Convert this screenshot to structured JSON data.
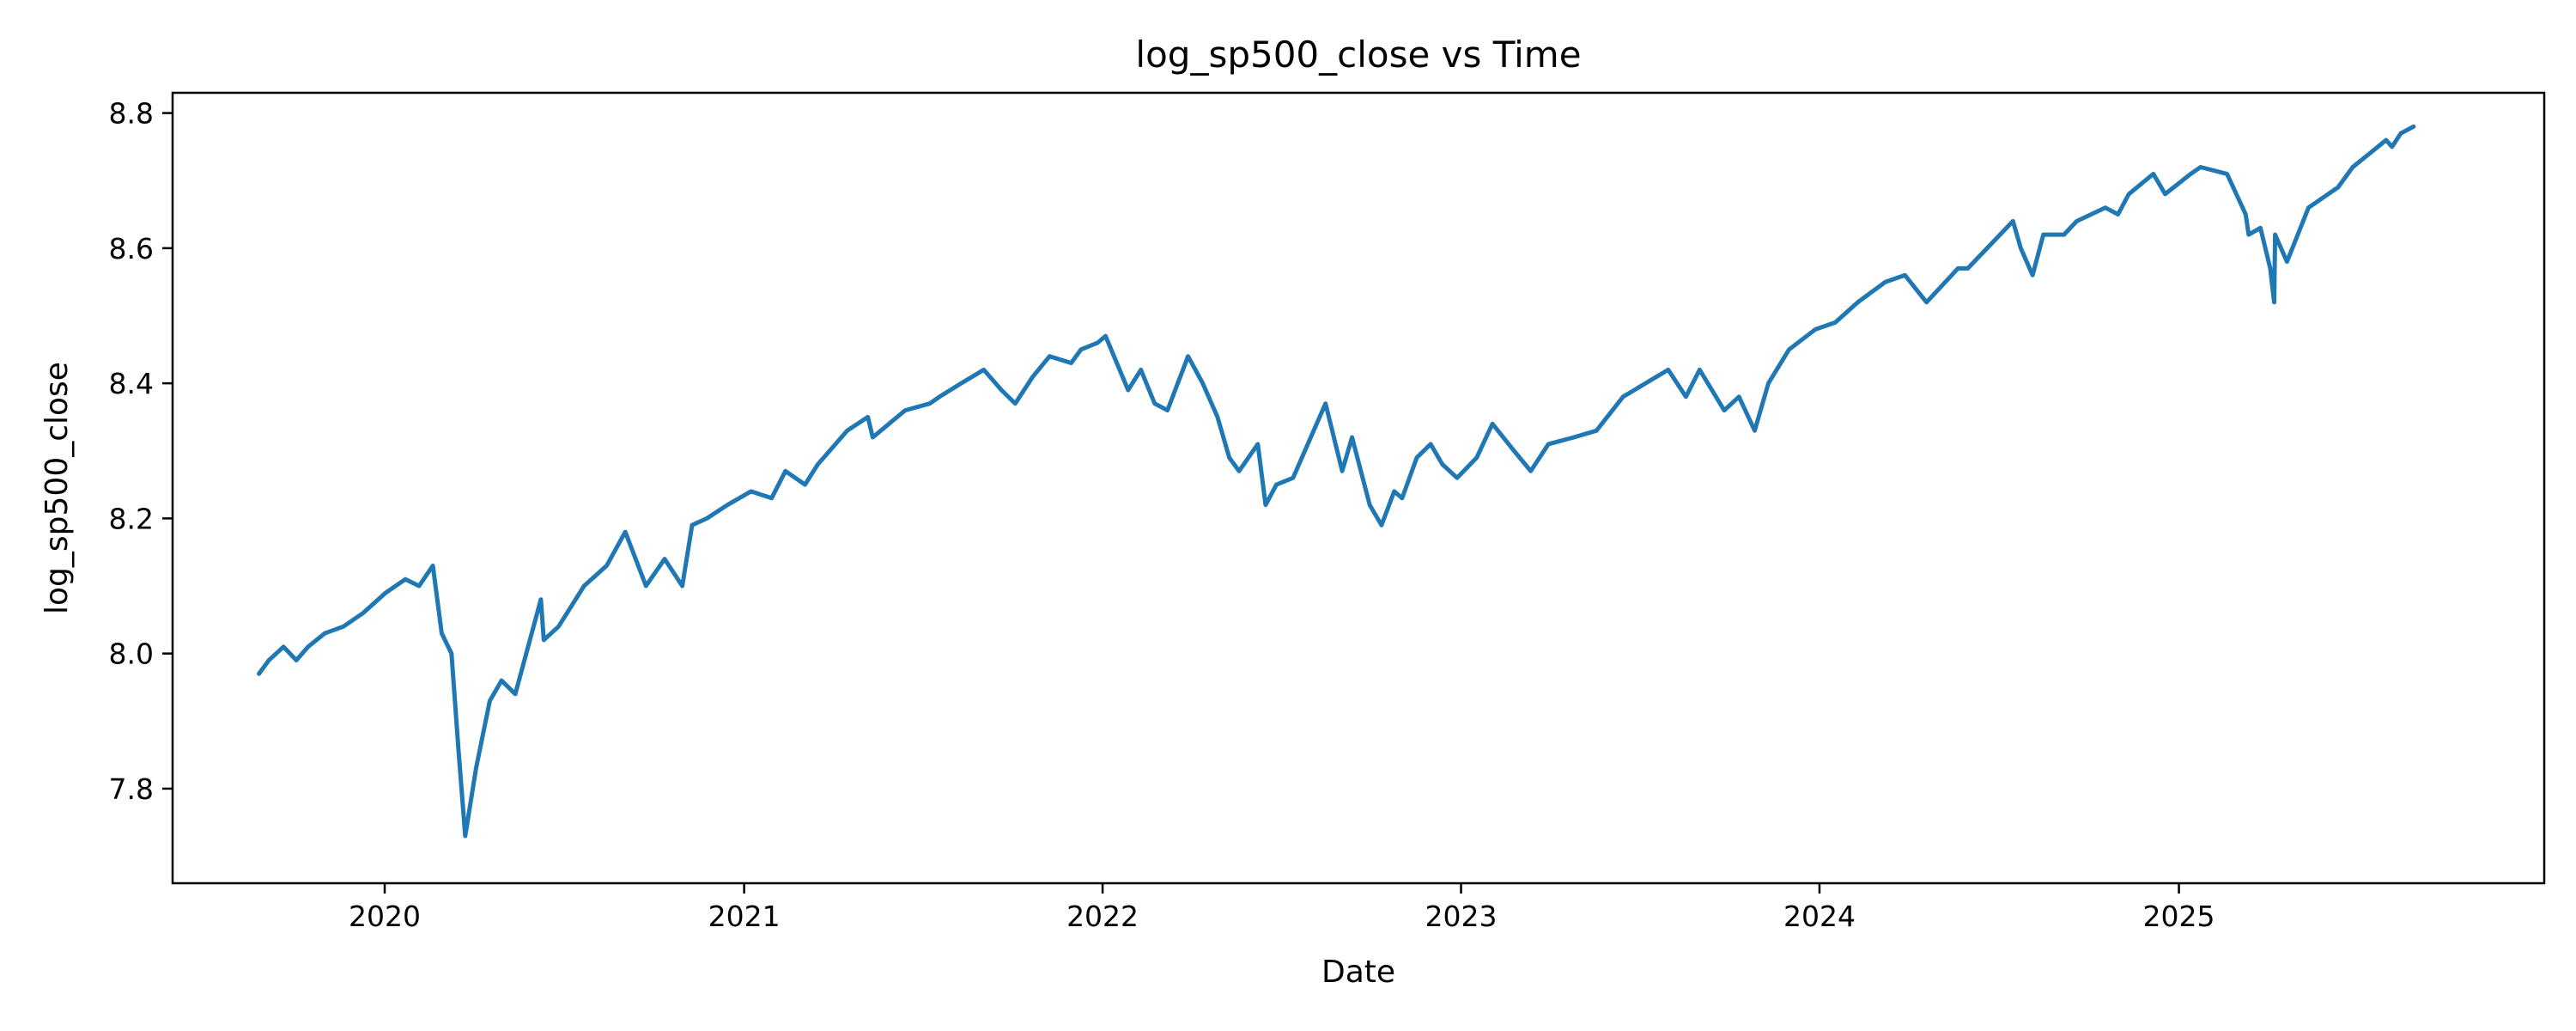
{
  "chart_data": {
    "type": "line",
    "title": "log_sp500_close vs Time",
    "xlabel": "Date",
    "ylabel": "log_sp500_close",
    "xlim": [
      "2019-05-30",
      "2026-01-08"
    ],
    "ylim": [
      7.66,
      8.83
    ],
    "xticks": [
      "2020",
      "2021",
      "2022",
      "2023",
      "2024",
      "2025"
    ],
    "yticks": [
      "7.8",
      "8.0",
      "8.2",
      "8.4",
      "8.6",
      "8.8"
    ],
    "grid": false,
    "legend": "none",
    "line_color": "#1f77b4",
    "series": [
      {
        "x": [
          "2019-08-26",
          "2019-09-05",
          "2019-09-20",
          "2019-10-03",
          "2019-10-15",
          "2019-11-01",
          "2019-11-20",
          "2019-12-10",
          "2020-01-02",
          "2020-01-22",
          "2020-02-05",
          "2020-02-19",
          "2020-02-28",
          "2020-03-09",
          "2020-03-16",
          "2020-03-23",
          "2020-04-03",
          "2020-04-17",
          "2020-04-29",
          "2020-05-13",
          "2020-06-08",
          "2020-06-11",
          "2020-06-26",
          "2020-07-22",
          "2020-08-14",
          "2020-09-02",
          "2020-09-23",
          "2020-10-12",
          "2020-10-30",
          "2020-11-09",
          "2020-11-24",
          "2020-12-15",
          "2021-01-08",
          "2021-01-29",
          "2021-02-12",
          "2021-03-04",
          "2021-03-17",
          "2021-04-16",
          "2021-05-07",
          "2021-05-12",
          "2021-06-14",
          "2021-07-09",
          "2021-07-19",
          "2021-08-10",
          "2021-09-02",
          "2021-09-20",
          "2021-10-04",
          "2021-10-22",
          "2021-11-08",
          "2021-11-30",
          "2021-12-10",
          "2021-12-27",
          "2022-01-04",
          "2022-01-27",
          "2022-02-09",
          "2022-02-23",
          "2022-03-08",
          "2022-03-29",
          "2022-04-13",
          "2022-04-28",
          "2022-05-10",
          "2022-05-20",
          "2022-06-08",
          "2022-06-16",
          "2022-06-27",
          "2022-07-14",
          "2022-08-16",
          "2022-09-02",
          "2022-09-12",
          "2022-09-30",
          "2022-10-12",
          "2022-10-25",
          "2022-11-02",
          "2022-11-17",
          "2022-12-01",
          "2022-12-13",
          "2022-12-28",
          "2023-01-17",
          "2023-02-02",
          "2023-02-24",
          "2023-03-13",
          "2023-03-31",
          "2023-04-26",
          "2023-05-19",
          "2023-06-15",
          "2023-07-31",
          "2023-08-18",
          "2023-09-01",
          "2023-09-26",
          "2023-10-11",
          "2023-10-27",
          "2023-11-10",
          "2023-12-01",
          "2023-12-28",
          "2024-01-17",
          "2024-02-09",
          "2024-03-08",
          "2024-03-28",
          "2024-04-19",
          "2024-05-21",
          "2024-05-31",
          "2024-07-16",
          "2024-07-24",
          "2024-08-05",
          "2024-08-16",
          "2024-09-06",
          "2024-09-19",
          "2024-10-18",
          "2024-10-31",
          "2024-11-11",
          "2024-12-06",
          "2024-12-18",
          "2025-01-13",
          "2025-01-23",
          "2025-02-19",
          "2025-03-10",
          "2025-03-13",
          "2025-03-25",
          "2025-04-04",
          "2025-04-08",
          "2025-04-09",
          "2025-04-21",
          "2025-05-13",
          "2025-06-12",
          "2025-06-27",
          "2025-07-14",
          "2025-07-31",
          "2025-08-06",
          "2025-08-15",
          "2025-08-28"
        ],
        "values": [
          7.97,
          7.99,
          8.01,
          7.99,
          8.01,
          8.03,
          8.04,
          8.06,
          8.09,
          8.11,
          8.1,
          8.13,
          8.03,
          8.0,
          7.86,
          7.73,
          7.83,
          7.93,
          7.96,
          7.94,
          8.08,
          8.02,
          8.04,
          8.1,
          8.13,
          8.18,
          8.1,
          8.14,
          8.1,
          8.19,
          8.2,
          8.22,
          8.24,
          8.23,
          8.27,
          8.25,
          8.28,
          8.33,
          8.35,
          8.32,
          8.36,
          8.37,
          8.38,
          8.4,
          8.42,
          8.39,
          8.37,
          8.41,
          8.44,
          8.43,
          8.45,
          8.46,
          8.47,
          8.39,
          8.42,
          8.37,
          8.36,
          8.44,
          8.4,
          8.35,
          8.29,
          8.27,
          8.31,
          8.22,
          8.25,
          8.26,
          8.37,
          8.27,
          8.32,
          8.22,
          8.19,
          8.24,
          8.23,
          8.29,
          8.31,
          8.28,
          8.26,
          8.29,
          8.34,
          8.3,
          8.27,
          8.31,
          8.32,
          8.33,
          8.38,
          8.42,
          8.38,
          8.42,
          8.36,
          8.38,
          8.33,
          8.4,
          8.45,
          8.48,
          8.49,
          8.52,
          8.55,
          8.56,
          8.52,
          8.57,
          8.57,
          8.64,
          8.6,
          8.56,
          8.62,
          8.62,
          8.64,
          8.66,
          8.65,
          8.68,
          8.71,
          8.68,
          8.71,
          8.72,
          8.71,
          8.65,
          8.62,
          8.63,
          8.57,
          8.52,
          8.62,
          8.58,
          8.66,
          8.69,
          8.72,
          8.74,
          8.76,
          8.75,
          8.77,
          8.78
        ]
      }
    ]
  }
}
